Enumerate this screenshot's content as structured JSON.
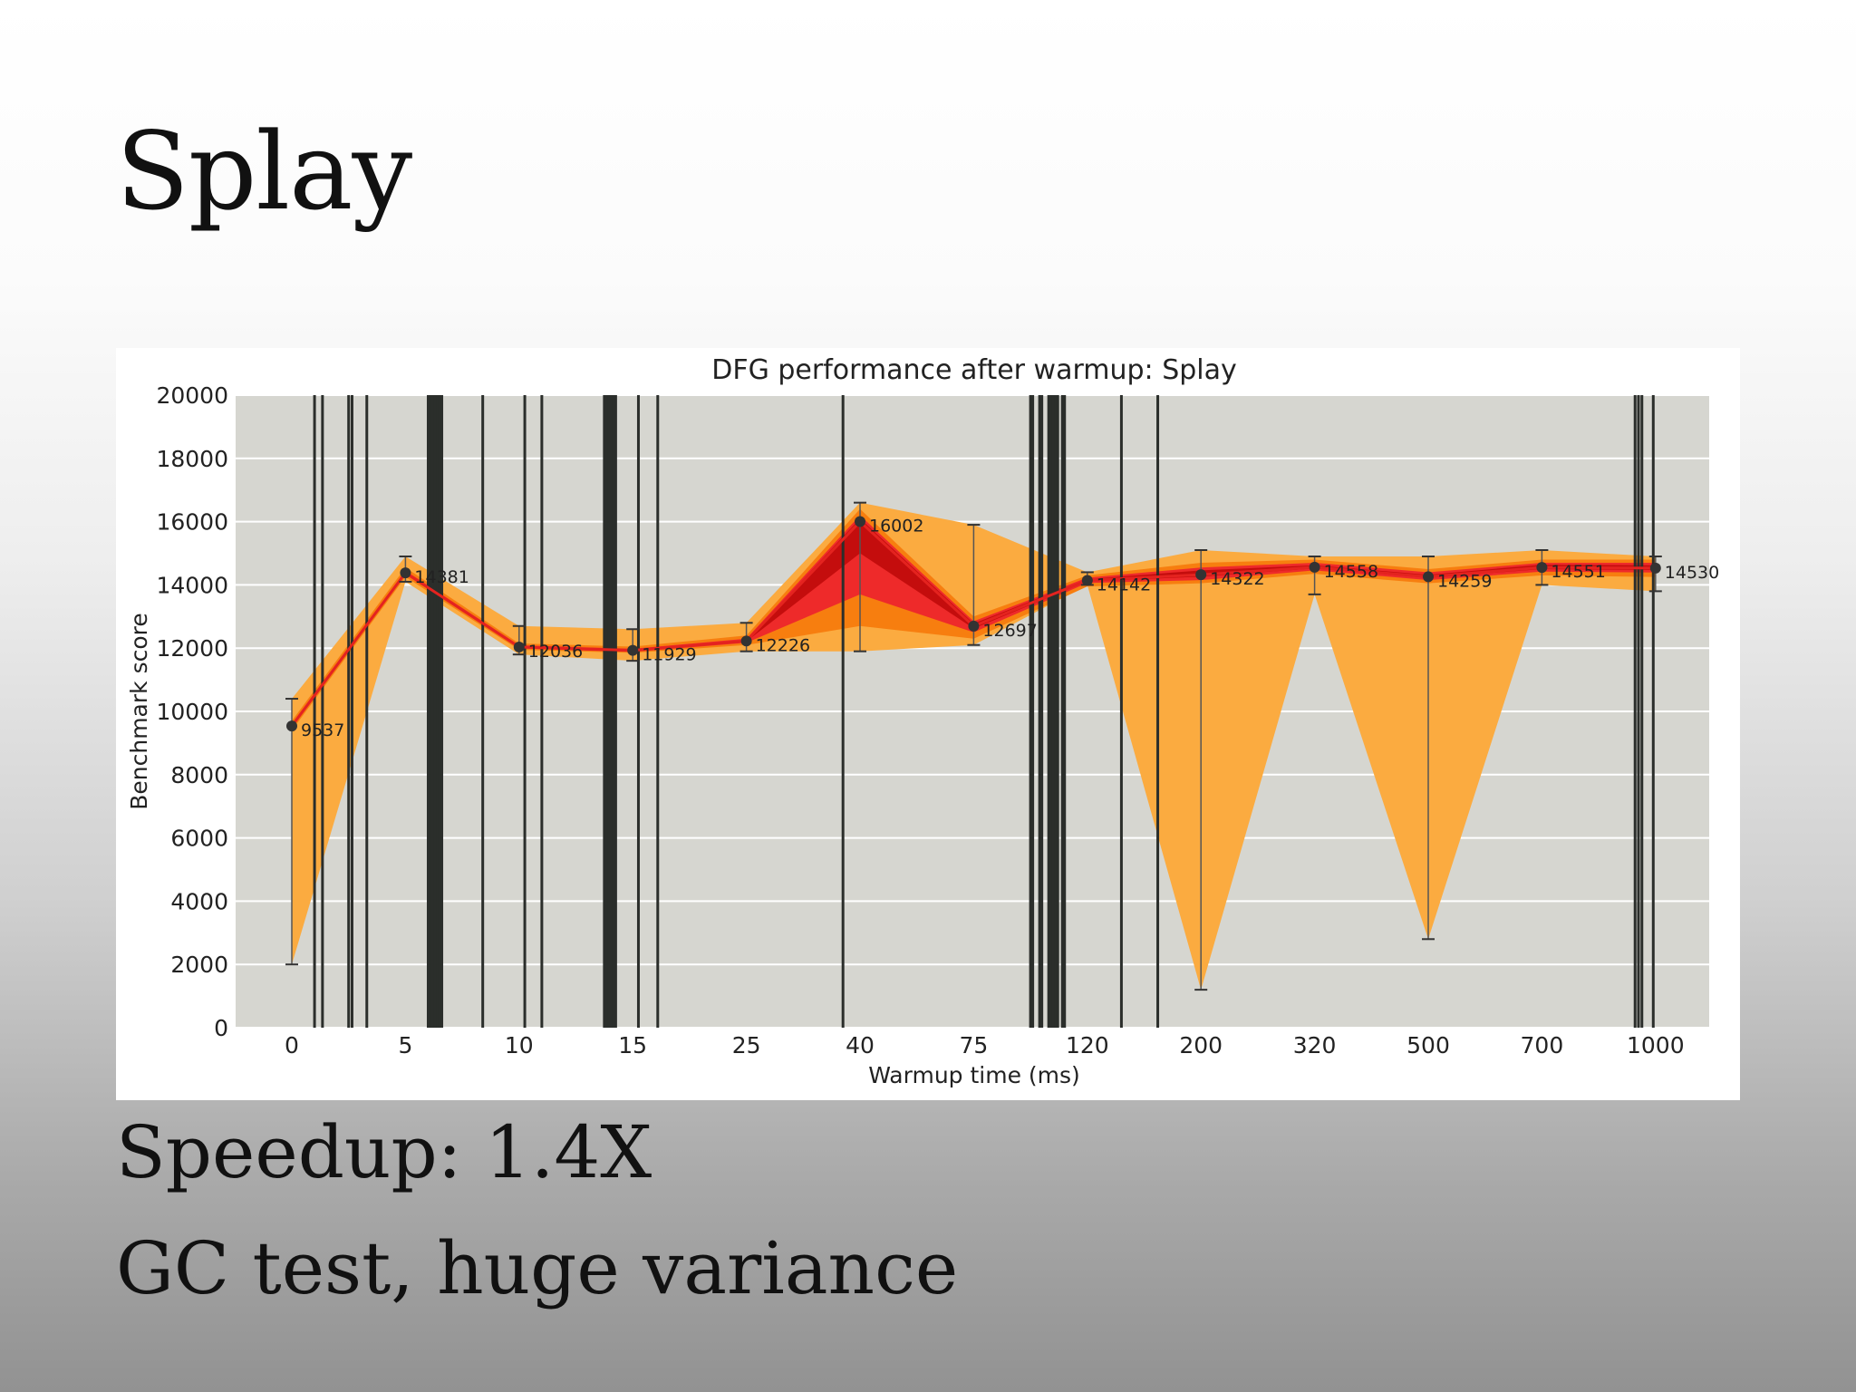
{
  "slide": {
    "title": "Splay",
    "bullets": [
      "Speedup: 1.4X",
      "GC test, huge variance"
    ]
  },
  "colors": {
    "plot_background": "#d6d6d0",
    "outer_band": "#fbab40",
    "mid_band": "#f77e0f",
    "inner_band": "#ee2a2a",
    "core_band": "#c40d0d",
    "median_line": "#e4231f",
    "marker": "#333333",
    "gc_line": "#2b2e2b"
  },
  "chart_data": {
    "type": "line",
    "title": "DFG performance after warmup: Splay",
    "xlabel": "Warmup time (ms)",
    "ylabel": "Benchmark score",
    "categories": [
      "0",
      "5",
      "10",
      "15",
      "25",
      "40",
      "75",
      "120",
      "200",
      "320",
      "500",
      "700",
      "1000"
    ],
    "ylim": [
      0,
      20000
    ],
    "yticks": [
      "0",
      "2000",
      "4000",
      "6000",
      "8000",
      "10000",
      "12000",
      "14000",
      "16000",
      "18000",
      "20000"
    ],
    "grid": true,
    "series": [
      {
        "values": [
          9537,
          14381,
          12036,
          11929,
          12226,
          16002,
          12697,
          14142,
          14322,
          14558,
          14259,
          14551,
          14530
        ],
        "labels": [
          "9537",
          "14381",
          "12036",
          "11929",
          "12226",
          "16002",
          "12697",
          "14142",
          "14322",
          "14558",
          "14259",
          "14551",
          "14530"
        ]
      }
    ],
    "bands": {
      "outer_low": [
        2000,
        14100,
        11800,
        11600,
        11900,
        11900,
        12100,
        14000,
        1200,
        13700,
        2800,
        14000,
        13800
      ],
      "outer_high": [
        10400,
        14900,
        12700,
        12600,
        12800,
        16600,
        15900,
        14400,
        15100,
        14900,
        14900,
        15100,
        14900
      ],
      "mid_low": [
        9400,
        14250,
        11950,
        11850,
        12100,
        12700,
        12300,
        13950,
        14050,
        14350,
        14050,
        14300,
        14250
      ],
      "mid_high": [
        9700,
        14550,
        12150,
        12050,
        12400,
        16400,
        13000,
        14300,
        14700,
        14800,
        14500,
        14800,
        14800
      ],
      "inner_low": [
        9470,
        14330,
        11990,
        11880,
        12170,
        13700,
        12500,
        14060,
        14150,
        14460,
        14150,
        14420,
        14390
      ],
      "inner_high": [
        9610,
        14450,
        12090,
        11980,
        12300,
        16200,
        12850,
        14230,
        14550,
        14700,
        14400,
        14700,
        14700
      ],
      "core_low": [
        9510,
        14360,
        12020,
        11910,
        12210,
        15000,
        12620,
        14110,
        14260,
        14520,
        14220,
        14500,
        14470
      ],
      "core_high": [
        9570,
        14410,
        12060,
        11950,
        12250,
        16100,
        12780,
        14180,
        14460,
        14620,
        14320,
        14640,
        14620
      ]
    },
    "gc_events_x": [
      0.2,
      0.27,
      0.5,
      0.53,
      0.66,
      1.2,
      1.22,
      1.24,
      1.26,
      1.28,
      1.3,
      1.32,
      1.68,
      2.05,
      2.2,
      2.75,
      2.77,
      2.79,
      2.81,
      2.83,
      2.85,
      3.05,
      3.22,
      4.85,
      6.5,
      6.52,
      6.58,
      6.6,
      6.66,
      6.68,
      6.7,
      6.72,
      6.74,
      6.78,
      6.8,
      7.3,
      7.62,
      11.82,
      11.85,
      11.88,
      11.98
    ]
  }
}
